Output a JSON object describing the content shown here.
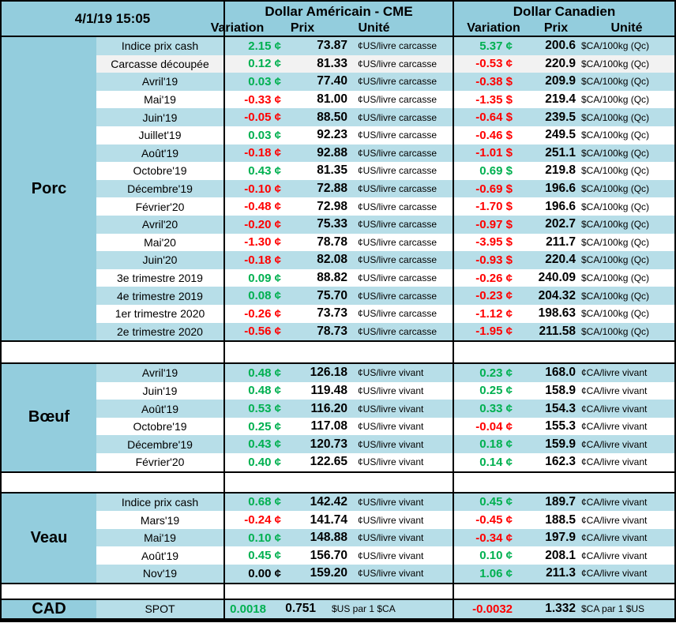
{
  "header": {
    "date": "4/1/19 15:05",
    "us_title": "Dollar Américain - CME",
    "ca_title": "Dollar Canadien",
    "col_variation": "Variation",
    "col_prix": "Prix",
    "col_unite": "Unité"
  },
  "colors": {
    "header_blue": "#93CDDD",
    "row_alt_blue": "#B7DEE8",
    "row_shaded": "#F2F2F2",
    "positive": "#00B050",
    "negative": "#FF0000",
    "neutral": "#000000"
  },
  "sections": [
    {
      "name": "Porc",
      "rows": [
        {
          "label": "Indice prix cash",
          "us_var": "2.15 ¢",
          "us_prix": "73.87",
          "us_unit": "¢US/livre carcasse",
          "ca_var": "5.37 ¢",
          "ca_prix": "200.6",
          "ca_unit": "$CA/100kg (Qc)"
        },
        {
          "label": "Carcasse découpée",
          "us_var": "0.12 ¢",
          "us_prix": "81.33",
          "us_unit": "¢US/livre carcasse",
          "ca_var": "-0.53 ¢",
          "ca_prix": "220.9",
          "ca_unit": "$CA/100kg (Qc)",
          "shade": true
        },
        {
          "label": "Avril'19",
          "us_var": "0.03 ¢",
          "us_prix": "77.40",
          "us_unit": "¢US/livre carcasse",
          "ca_var": "-0.38 $",
          "ca_prix": "209.9",
          "ca_unit": "$CA/100kg (Qc)"
        },
        {
          "label": "Mai'19",
          "us_var": "-0.33 ¢",
          "us_prix": "81.00",
          "us_unit": "¢US/livre carcasse",
          "ca_var": "-1.35 $",
          "ca_prix": "219.4",
          "ca_unit": "$CA/100kg (Qc)"
        },
        {
          "label": "Juin'19",
          "us_var": "-0.05 ¢",
          "us_prix": "88.50",
          "us_unit": "¢US/livre carcasse",
          "ca_var": "-0.64 $",
          "ca_prix": "239.5",
          "ca_unit": "$CA/100kg (Qc)"
        },
        {
          "label": "Juillet'19",
          "us_var": "0.03 ¢",
          "us_prix": "92.23",
          "us_unit": "¢US/livre carcasse",
          "ca_var": "-0.46 $",
          "ca_prix": "249.5",
          "ca_unit": "$CA/100kg (Qc)"
        },
        {
          "label": "Août'19",
          "us_var": "-0.18 ¢",
          "us_prix": "92.88",
          "us_unit": "¢US/livre carcasse",
          "ca_var": "-1.01 $",
          "ca_prix": "251.1",
          "ca_unit": "$CA/100kg (Qc)"
        },
        {
          "label": "Octobre'19",
          "us_var": "0.43 ¢",
          "us_prix": "81.35",
          "us_unit": "¢US/livre carcasse",
          "ca_var": "0.69 $",
          "ca_prix": "219.8",
          "ca_unit": "$CA/100kg (Qc)"
        },
        {
          "label": "Décembre'19",
          "us_var": "-0.10 ¢",
          "us_prix": "72.88",
          "us_unit": "¢US/livre carcasse",
          "ca_var": "-0.69 $",
          "ca_prix": "196.6",
          "ca_unit": "$CA/100kg (Qc)"
        },
        {
          "label": "Février'20",
          "us_var": "-0.48 ¢",
          "us_prix": "72.98",
          "us_unit": "¢US/livre carcasse",
          "ca_var": "-1.70 $",
          "ca_prix": "196.6",
          "ca_unit": "$CA/100kg (Qc)"
        },
        {
          "label": "Avril'20",
          "us_var": "-0.20 ¢",
          "us_prix": "75.33",
          "us_unit": "¢US/livre carcasse",
          "ca_var": "-0.97 $",
          "ca_prix": "202.7",
          "ca_unit": "$CA/100kg (Qc)"
        },
        {
          "label": "Mai'20",
          "us_var": "-1.30 ¢",
          "us_prix": "78.78",
          "us_unit": "¢US/livre carcasse",
          "ca_var": "-3.95 $",
          "ca_prix": "211.7",
          "ca_unit": "$CA/100kg (Qc)"
        },
        {
          "label": "Juin'20",
          "us_var": "-0.18 ¢",
          "us_prix": "82.08",
          "us_unit": "¢US/livre carcasse",
          "ca_var": "-0.93 $",
          "ca_prix": "220.4",
          "ca_unit": "$CA/100kg (Qc)"
        },
        {
          "label": "3e trimestre 2019",
          "us_var": "0.09 ¢",
          "us_prix": "88.82",
          "us_unit": "¢US/livre carcasse",
          "ca_var": "-0.26 ¢",
          "ca_prix": "240.09",
          "ca_unit": "$CA/100kg (Qc)"
        },
        {
          "label": "4e trimestre 2019",
          "us_var": "0.08 ¢",
          "us_prix": "75.70",
          "us_unit": "¢US/livre carcasse",
          "ca_var": "-0.23 ¢",
          "ca_prix": "204.32",
          "ca_unit": "$CA/100kg (Qc)"
        },
        {
          "label": "1er trimestre 2020",
          "us_var": "-0.26 ¢",
          "us_prix": "73.73",
          "us_unit": "¢US/livre carcasse",
          "ca_var": "-1.12 ¢",
          "ca_prix": "198.63",
          "ca_unit": "$CA/100kg (Qc)"
        },
        {
          "label": "2e trimestre 2020",
          "us_var": "-0.56 ¢",
          "us_prix": "78.73",
          "us_unit": "¢US/livre carcasse",
          "ca_var": "-1.95 ¢",
          "ca_prix": "211.58",
          "ca_unit": "$CA/100kg (Qc)"
        }
      ]
    },
    {
      "name": "Bœuf",
      "rows": [
        {
          "label": "Avril'19",
          "us_var": "0.48 ¢",
          "us_prix": "126.18",
          "us_unit": "¢US/livre vivant",
          "ca_var": "0.23 ¢",
          "ca_prix": "168.0",
          "ca_unit": "¢CA/livre vivant"
        },
        {
          "label": "Juin'19",
          "us_var": "0.48 ¢",
          "us_prix": "119.48",
          "us_unit": "¢US/livre vivant",
          "ca_var": "0.25 ¢",
          "ca_prix": "158.9",
          "ca_unit": "¢CA/livre vivant"
        },
        {
          "label": "Août'19",
          "us_var": "0.53 ¢",
          "us_prix": "116.20",
          "us_unit": "¢US/livre vivant",
          "ca_var": "0.33 ¢",
          "ca_prix": "154.3",
          "ca_unit": "¢CA/livre vivant"
        },
        {
          "label": "Octobre'19",
          "us_var": "0.25 ¢",
          "us_prix": "117.08",
          "us_unit": "¢US/livre vivant",
          "ca_var": "-0.04 ¢",
          "ca_prix": "155.3",
          "ca_unit": "¢CA/livre vivant"
        },
        {
          "label": "Décembre'19",
          "us_var": "0.43 ¢",
          "us_prix": "120.73",
          "us_unit": "¢US/livre vivant",
          "ca_var": "0.18 ¢",
          "ca_prix": "159.9",
          "ca_unit": "¢CA/livre vivant"
        },
        {
          "label": "Février'20",
          "us_var": "0.40 ¢",
          "us_prix": "122.65",
          "us_unit": "¢US/livre vivant",
          "ca_var": "0.14 ¢",
          "ca_prix": "162.3",
          "ca_unit": "¢CA/livre vivant"
        }
      ]
    },
    {
      "name": "Veau",
      "rows": [
        {
          "label": "Indice prix cash",
          "us_var": "0.68 ¢",
          "us_prix": "142.42",
          "us_unit": "¢US/livre vivant",
          "ca_var": "0.45 ¢",
          "ca_prix": "189.7",
          "ca_unit": "¢CA/livre vivant"
        },
        {
          "label": "Mars'19",
          "us_var": "-0.24 ¢",
          "us_prix": "141.74",
          "us_unit": "¢US/livre vivant",
          "ca_var": "-0.45 ¢",
          "ca_prix": "188.5",
          "ca_unit": "¢CA/livre vivant"
        },
        {
          "label": "Mai'19",
          "us_var": "0.10 ¢",
          "us_prix": "148.88",
          "us_unit": "¢US/livre vivant",
          "ca_var": "-0.34 ¢",
          "ca_prix": "197.9",
          "ca_unit": "¢CA/livre vivant"
        },
        {
          "label": "Août'19",
          "us_var": "0.45 ¢",
          "us_prix": "156.70",
          "us_unit": "¢US/livre vivant",
          "ca_var": "0.10 ¢",
          "ca_prix": "208.1",
          "ca_unit": "¢CA/livre vivant"
        },
        {
          "label": "Nov'19",
          "us_var": "0.00 ¢",
          "us_prix": "159.20",
          "us_unit": "¢US/livre vivant",
          "ca_var": "1.06 ¢",
          "ca_prix": "211.3",
          "ca_unit": "¢CA/livre vivant"
        }
      ]
    },
    {
      "name": "CAD",
      "rows": [
        {
          "label": "SPOT",
          "us_var": "0.0018",
          "us_prix": "0.751",
          "us_unit": "$US par 1 $CA",
          "ca_var": "-0.0032",
          "ca_prix": "1.332",
          "ca_unit": "$CA par 1 $US"
        }
      ]
    }
  ]
}
